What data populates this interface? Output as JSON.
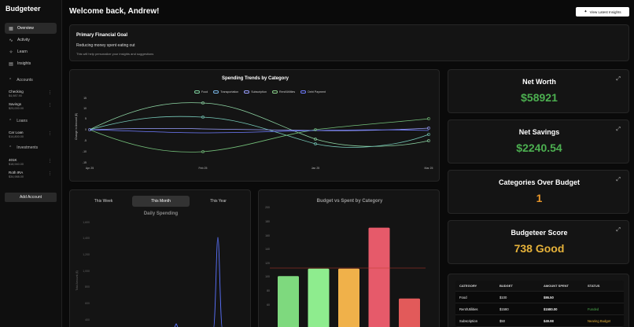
{
  "sidebar": {
    "brand": "Budgeteer",
    "nav": [
      {
        "label": "Overview",
        "icon": "grid-icon",
        "active": true
      },
      {
        "label": "Activity",
        "icon": "activity-icon",
        "active": false
      },
      {
        "label": "Learn",
        "icon": "learn-icon",
        "active": false
      },
      {
        "label": "Insights",
        "icon": "insights-icon",
        "active": false
      }
    ],
    "accounts_label": "Accounts",
    "accounts": [
      {
        "name": "Checking",
        "value": "$4,987.90"
      },
      {
        "name": "Savings",
        "value": "$25,000.00"
      }
    ],
    "loans_label": "Loans",
    "loans": [
      {
        "name": "Car Loan",
        "value": "$14,800.00"
      }
    ],
    "investments_label": "Investments",
    "investments": [
      {
        "name": "401K",
        "value": "$18,940.00"
      },
      {
        "name": "Roth IRA",
        "value": "$34,988.00"
      }
    ],
    "add_account": "Add Account"
  },
  "header": {
    "welcome": "Welcome back, Andrew!",
    "insights_button": "View Latest Insights"
  },
  "goal": {
    "title": "Primary Financial Goal",
    "goal": "Reducing money spent eating out",
    "hint": "This will help personalize your insights and suggestions"
  },
  "stats": [
    {
      "label": "Net Worth",
      "value": "$58921",
      "color": "#4caf50"
    },
    {
      "label": "Net Savings",
      "value": "$2240.54",
      "color": "#4caf50"
    },
    {
      "label": "Categories Over Budget",
      "value": "1",
      "color": "#e6952a"
    },
    {
      "label": "Budgeteer Score",
      "value": "738 Good",
      "color": "#e6b23a"
    }
  ],
  "trend_chart": {
    "title": "Spending Trends by Category",
    "ylabel": "Change in Amount ($)",
    "legend": [
      "Food",
      "Transportation",
      "Subscription",
      "Rent/Utilities",
      "Debt Payment"
    ],
    "yticks": [
      "15",
      "10",
      "5",
      "0",
      "-5",
      "-10",
      "-15"
    ],
    "xticks": [
      "Apr 25",
      "Feb 25",
      "Jan 25",
      "Mar 25"
    ]
  },
  "spending": {
    "tabs": [
      "This Week",
      "This Month",
      "This Year"
    ],
    "active_tab": 1,
    "title": "Daily Spending",
    "ylabel": "Total Amount ($)",
    "yticks": [
      "1,600",
      "1,400",
      "1,200",
      "1,000",
      "800",
      "600",
      "400"
    ]
  },
  "chart_data": {
    "type": "bar",
    "title": "Budget vs Spent by Category",
    "yticks": [
      "200",
      "180",
      "160",
      "140",
      "120",
      "100",
      "80",
      "60"
    ],
    "ylim": [
      0,
      200
    ],
    "reference_line": 100,
    "values": [
      87,
      99,
      99,
      165,
      51
    ],
    "colors": [
      "#7ed97e",
      "#8eec8e",
      "#f0b14a",
      "#e65a6a",
      "#e25a5a"
    ]
  },
  "table": {
    "headers": [
      "CATEGORY",
      "BUDGET",
      "AMOUNT SPENT",
      "STATUS"
    ],
    "rows": [
      [
        "Food",
        "$100",
        "$86.50",
        ""
      ],
      [
        "Rent/Utilities",
        "$1580",
        "$1580.00",
        "Funded"
      ],
      [
        "Subscription",
        "$50",
        "$49.98",
        "Nearing Budget"
      ]
    ],
    "status_colors": {
      "Funded": "#4caf50",
      "Nearing Budget": "#e6b23a"
    }
  }
}
